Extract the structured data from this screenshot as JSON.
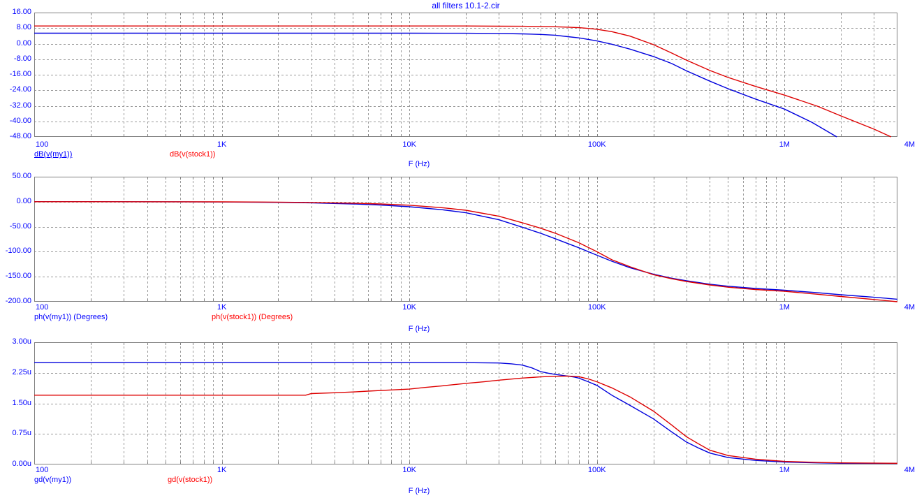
{
  "app": {
    "title": "all filters 10.1-2.cir"
  },
  "colors": {
    "trace_blue": "#0000dd",
    "trace_red": "#dd0000",
    "label_blue": "#0000ff",
    "label_red": "#ff0000",
    "grid": "#9a9a9a",
    "frame": "#7f7f7f",
    "background": "#ffffff"
  },
  "chart_data": [
    {
      "id": "magnitude",
      "type": "line",
      "x_scale": "log",
      "xlabel": "F (Hz)",
      "x_range": [
        100,
        4000000
      ],
      "x_ticks": [
        {
          "label": "100",
          "value": 100
        },
        {
          "label": "1K",
          "value": 1000
        },
        {
          "label": "10K",
          "value": 10000
        },
        {
          "label": "100K",
          "value": 100000
        },
        {
          "label": "1M",
          "value": 1000000
        },
        {
          "label": "4M",
          "value": 4000000
        }
      ],
      "y_range": [
        -48,
        16
      ],
      "y_ticks": [
        {
          "label": "16.00",
          "value": 16
        },
        {
          "label": "8.00",
          "value": 8
        },
        {
          "label": "0.00",
          "value": 0
        },
        {
          "label": "-8.00",
          "value": -8
        },
        {
          "label": "-16.00",
          "value": -16
        },
        {
          "label": "-24.00",
          "value": -24
        },
        {
          "label": "-32.00",
          "value": -32
        },
        {
          "label": "-40.00",
          "value": -40
        },
        {
          "label": "-48.00",
          "value": -48
        }
      ],
      "series": [
        {
          "name": "dB(v(my1))",
          "color_key": "trace_blue",
          "selected": true,
          "points": [
            [
              100,
              5.4
            ],
            [
              1000,
              5.4
            ],
            [
              10000,
              5.4
            ],
            [
              20000,
              5.35
            ],
            [
              30000,
              5.25
            ],
            [
              40000,
              5.05
            ],
            [
              50000,
              4.75
            ],
            [
              60000,
              4.35
            ],
            [
              70000,
              3.6
            ],
            [
              80000,
              3.0
            ],
            [
              90000,
              2.2
            ],
            [
              100000,
              1.4
            ],
            [
              120000,
              -0.3
            ],
            [
              150000,
              -2.8
            ],
            [
              200000,
              -6.6
            ],
            [
              250000,
              -10.2
            ],
            [
              300000,
              -14.0
            ],
            [
              400000,
              -19.3
            ],
            [
              500000,
              -23.2
            ],
            [
              700000,
              -28.5
            ],
            [
              1000000,
              -33.7
            ],
            [
              1400000,
              -40.5
            ],
            [
              1900000,
              -48
            ]
          ]
        },
        {
          "name": "dB(v(stock1))",
          "color_key": "trace_red",
          "selected": false,
          "points": [
            [
              100,
              9.1
            ],
            [
              1000,
              9.1
            ],
            [
              10000,
              9.1
            ],
            [
              20000,
              9.1
            ],
            [
              30000,
              9.0
            ],
            [
              40000,
              8.95
            ],
            [
              50000,
              8.85
            ],
            [
              60000,
              8.7
            ],
            [
              70000,
              8.5
            ],
            [
              80000,
              8.25
            ],
            [
              90000,
              7.85
            ],
            [
              100000,
              7.4
            ],
            [
              120000,
              6.2
            ],
            [
              150000,
              3.9
            ],
            [
              200000,
              -0.5
            ],
            [
              250000,
              -4.8
            ],
            [
              300000,
              -8.5
            ],
            [
              400000,
              -13.8
            ],
            [
              500000,
              -17.4
            ],
            [
              700000,
              -22.0
            ],
            [
              1000000,
              -26.5
            ],
            [
              1500000,
              -32.2
            ],
            [
              2000000,
              -37.2
            ],
            [
              3000000,
              -44.0
            ],
            [
              3700000,
              -48
            ]
          ]
        }
      ]
    },
    {
      "id": "phase",
      "type": "line",
      "x_scale": "log",
      "xlabel": "F (Hz)",
      "x_range": [
        100,
        4000000
      ],
      "x_ticks": [
        {
          "label": "100",
          "value": 100
        },
        {
          "label": "1K",
          "value": 1000
        },
        {
          "label": "10K",
          "value": 10000
        },
        {
          "label": "100K",
          "value": 100000
        },
        {
          "label": "1M",
          "value": 1000000
        },
        {
          "label": "4M",
          "value": 4000000
        }
      ],
      "y_range": [
        -200,
        50
      ],
      "y_ticks": [
        {
          "label": "50.00",
          "value": 50
        },
        {
          "label": "0.00",
          "value": 0
        },
        {
          "label": "-50.00",
          "value": -50
        },
        {
          "label": "-100.00",
          "value": -100
        },
        {
          "label": "-150.00",
          "value": -150
        },
        {
          "label": "-200.00",
          "value": -200
        }
      ],
      "series": [
        {
          "name": "ph(v(my1)) (Degrees)",
          "color_key": "trace_blue",
          "selected": false,
          "points": [
            [
              100,
              -0.05
            ],
            [
              500,
              -0.2
            ],
            [
              1000,
              -0.6
            ],
            [
              2000,
              -1.4
            ],
            [
              3000,
              -2.3
            ],
            [
              5000,
              -4.5
            ],
            [
              7000,
              -6.5
            ],
            [
              10000,
              -10
            ],
            [
              15000,
              -16
            ],
            [
              20000,
              -22
            ],
            [
              30000,
              -36
            ],
            [
              40000,
              -51
            ],
            [
              50000,
              -63
            ],
            [
              60000,
              -74
            ],
            [
              80000,
              -92
            ],
            [
              100000,
              -107
            ],
            [
              120000,
              -119
            ],
            [
              150000,
              -132
            ],
            [
              200000,
              -145
            ],
            [
              250000,
              -153
            ],
            [
              300000,
              -158
            ],
            [
              400000,
              -165
            ],
            [
              500000,
              -169
            ],
            [
              700000,
              -173.5
            ],
            [
              1000000,
              -177
            ],
            [
              1500000,
              -182
            ],
            [
              2000000,
              -186
            ],
            [
              3000000,
              -191
            ],
            [
              4000000,
              -195
            ]
          ]
        },
        {
          "name": "ph(v(stock1)) (Degrees)",
          "color_key": "trace_red",
          "selected": false,
          "points": [
            [
              100,
              0
            ],
            [
              1000,
              -0.3
            ],
            [
              2000,
              -0.9
            ],
            [
              3000,
              -1.6
            ],
            [
              5000,
              -3
            ],
            [
              7000,
              -4.5
            ],
            [
              10000,
              -7
            ],
            [
              15000,
              -12
            ],
            [
              20000,
              -17
            ],
            [
              30000,
              -29
            ],
            [
              40000,
              -42
            ],
            [
              50000,
              -53
            ],
            [
              60000,
              -63
            ],
            [
              80000,
              -82
            ],
            [
              100000,
              -100
            ],
            [
              120000,
              -116
            ],
            [
              150000,
              -130
            ],
            [
              200000,
              -146
            ],
            [
              250000,
              -154
            ],
            [
              300000,
              -159.5
            ],
            [
              400000,
              -166.5
            ],
            [
              500000,
              -171
            ],
            [
              700000,
              -175.5
            ],
            [
              1000000,
              -179
            ],
            [
              1500000,
              -185
            ],
            [
              2000000,
              -189.5
            ],
            [
              3000000,
              -195.5
            ],
            [
              4000000,
              -200
            ]
          ]
        }
      ]
    },
    {
      "id": "group-delay",
      "type": "line",
      "x_scale": "log",
      "xlabel": "F (Hz)",
      "x_range": [
        100,
        4000000
      ],
      "x_ticks": [
        {
          "label": "100",
          "value": 100
        },
        {
          "label": "1K",
          "value": 1000
        },
        {
          "label": "10K",
          "value": 10000
        },
        {
          "label": "100K",
          "value": 100000
        },
        {
          "label": "1M",
          "value": 1000000
        },
        {
          "label": "4M",
          "value": 4000000
        }
      ],
      "y_range": [
        0,
        3
      ],
      "y_unit": "u",
      "y_ticks": [
        {
          "label": "3.00u",
          "value": 3
        },
        {
          "label": "2.25u",
          "value": 2.25
        },
        {
          "label": "1.50u",
          "value": 1.5
        },
        {
          "label": "0.75u",
          "value": 0.75
        },
        {
          "label": "0.00u",
          "value": 0
        }
      ],
      "series": [
        {
          "name": "gd(v(my1))",
          "color_key": "trace_blue",
          "selected": false,
          "points": [
            [
              100,
              2.5
            ],
            [
              1000,
              2.5
            ],
            [
              10000,
              2.5
            ],
            [
              20000,
              2.5
            ],
            [
              30000,
              2.49
            ],
            [
              35000,
              2.47
            ],
            [
              40000,
              2.44
            ],
            [
              45000,
              2.37
            ],
            [
              50000,
              2.28
            ],
            [
              55000,
              2.24
            ],
            [
              60000,
              2.21
            ],
            [
              70000,
              2.17
            ],
            [
              76000,
              2.145
            ],
            [
              80000,
              2.12
            ],
            [
              90000,
              2.03
            ],
            [
              100000,
              1.94
            ],
            [
              120000,
              1.7
            ],
            [
              150000,
              1.45
            ],
            [
              200000,
              1.12
            ],
            [
              250000,
              0.8
            ],
            [
              300000,
              0.55
            ],
            [
              350000,
              0.4
            ],
            [
              400000,
              0.28
            ],
            [
              500000,
              0.17
            ],
            [
              700000,
              0.1
            ],
            [
              1000000,
              0.06
            ],
            [
              1500000,
              0.04
            ],
            [
              2000000,
              0.03
            ],
            [
              4000000,
              0.025
            ]
          ]
        },
        {
          "name": "gd(v(stock1))",
          "color_key": "trace_red",
          "selected": false,
          "points": [
            [
              100,
              1.7
            ],
            [
              1000,
              1.7
            ],
            [
              2000,
              1.7
            ],
            [
              2800,
              1.7
            ],
            [
              3000,
              1.74
            ],
            [
              4000,
              1.76
            ],
            [
              5000,
              1.78
            ],
            [
              6000,
              1.8
            ],
            [
              8000,
              1.83
            ],
            [
              10000,
              1.85
            ],
            [
              12000,
              1.89
            ],
            [
              15000,
              1.93
            ],
            [
              20000,
              1.99
            ],
            [
              25000,
              2.03
            ],
            [
              30000,
              2.07
            ],
            [
              40000,
              2.12
            ],
            [
              50000,
              2.15
            ],
            [
              60000,
              2.165
            ],
            [
              70000,
              2.17
            ],
            [
              80000,
              2.155
            ],
            [
              90000,
              2.1
            ],
            [
              100000,
              2.03
            ],
            [
              120000,
              1.88
            ],
            [
              150000,
              1.66
            ],
            [
              200000,
              1.31
            ],
            [
              250000,
              0.97
            ],
            [
              300000,
              0.68
            ],
            [
              350000,
              0.5
            ],
            [
              400000,
              0.35
            ],
            [
              500000,
              0.22
            ],
            [
              700000,
              0.13
            ],
            [
              1000000,
              0.075
            ],
            [
              1500000,
              0.05
            ],
            [
              2000000,
              0.04
            ],
            [
              4000000,
              0.03
            ]
          ]
        }
      ]
    }
  ]
}
